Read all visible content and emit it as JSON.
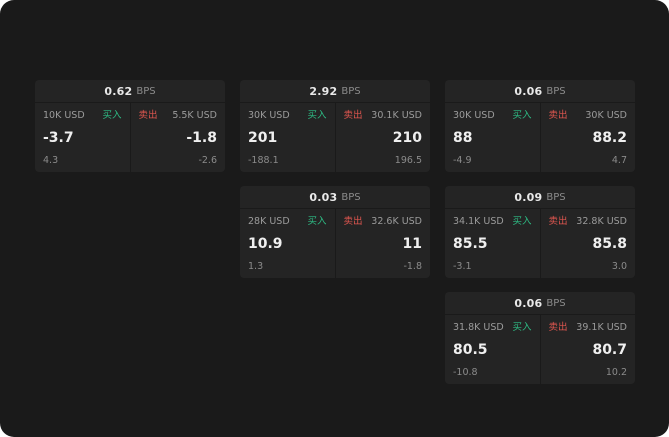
{
  "labels": {
    "bps": "BPS",
    "buy": "买入",
    "sell": "卖出"
  },
  "colors": {
    "background": "#1a1a1a",
    "card": "#242424",
    "buy": "#2ebd85",
    "sell": "#e0564f",
    "text_primary": "#f0f0f0",
    "text_secondary": "#8b8b8b"
  },
  "cards": [
    {
      "bps": "0.62",
      "row": 1,
      "col": 1,
      "buy": {
        "amount": "10K USD",
        "price": "-3.7",
        "sub": "4.3"
      },
      "sell": {
        "amount": "5.5K USD",
        "price": "-1.8",
        "sub": "-2.6"
      }
    },
    {
      "bps": "2.92",
      "row": 1,
      "col": 2,
      "buy": {
        "amount": "30K USD",
        "price": "201",
        "sub": "-188.1"
      },
      "sell": {
        "amount": "30.1K USD",
        "price": "210",
        "sub": "196.5"
      }
    },
    {
      "bps": "0.06",
      "row": 1,
      "col": 3,
      "buy": {
        "amount": "30K USD",
        "price": "88",
        "sub": "-4.9"
      },
      "sell": {
        "amount": "30K USD",
        "price": "88.2",
        "sub": "4.7"
      }
    },
    {
      "bps": "0.03",
      "row": 2,
      "col": 2,
      "buy": {
        "amount": "28K USD",
        "price": "10.9",
        "sub": "1.3"
      },
      "sell": {
        "amount": "32.6K USD",
        "price": "11",
        "sub": "-1.8"
      }
    },
    {
      "bps": "0.09",
      "row": 2,
      "col": 3,
      "buy": {
        "amount": "34.1K USD",
        "price": "85.5",
        "sub": "-3.1"
      },
      "sell": {
        "amount": "32.8K USD",
        "price": "85.8",
        "sub": "3.0"
      }
    },
    {
      "bps": "0.06",
      "row": 3,
      "col": 3,
      "buy": {
        "amount": "31.8K USD",
        "price": "80.5",
        "sub": "-10.8"
      },
      "sell": {
        "amount": "39.1K USD",
        "price": "80.7",
        "sub": "10.2"
      }
    }
  ]
}
